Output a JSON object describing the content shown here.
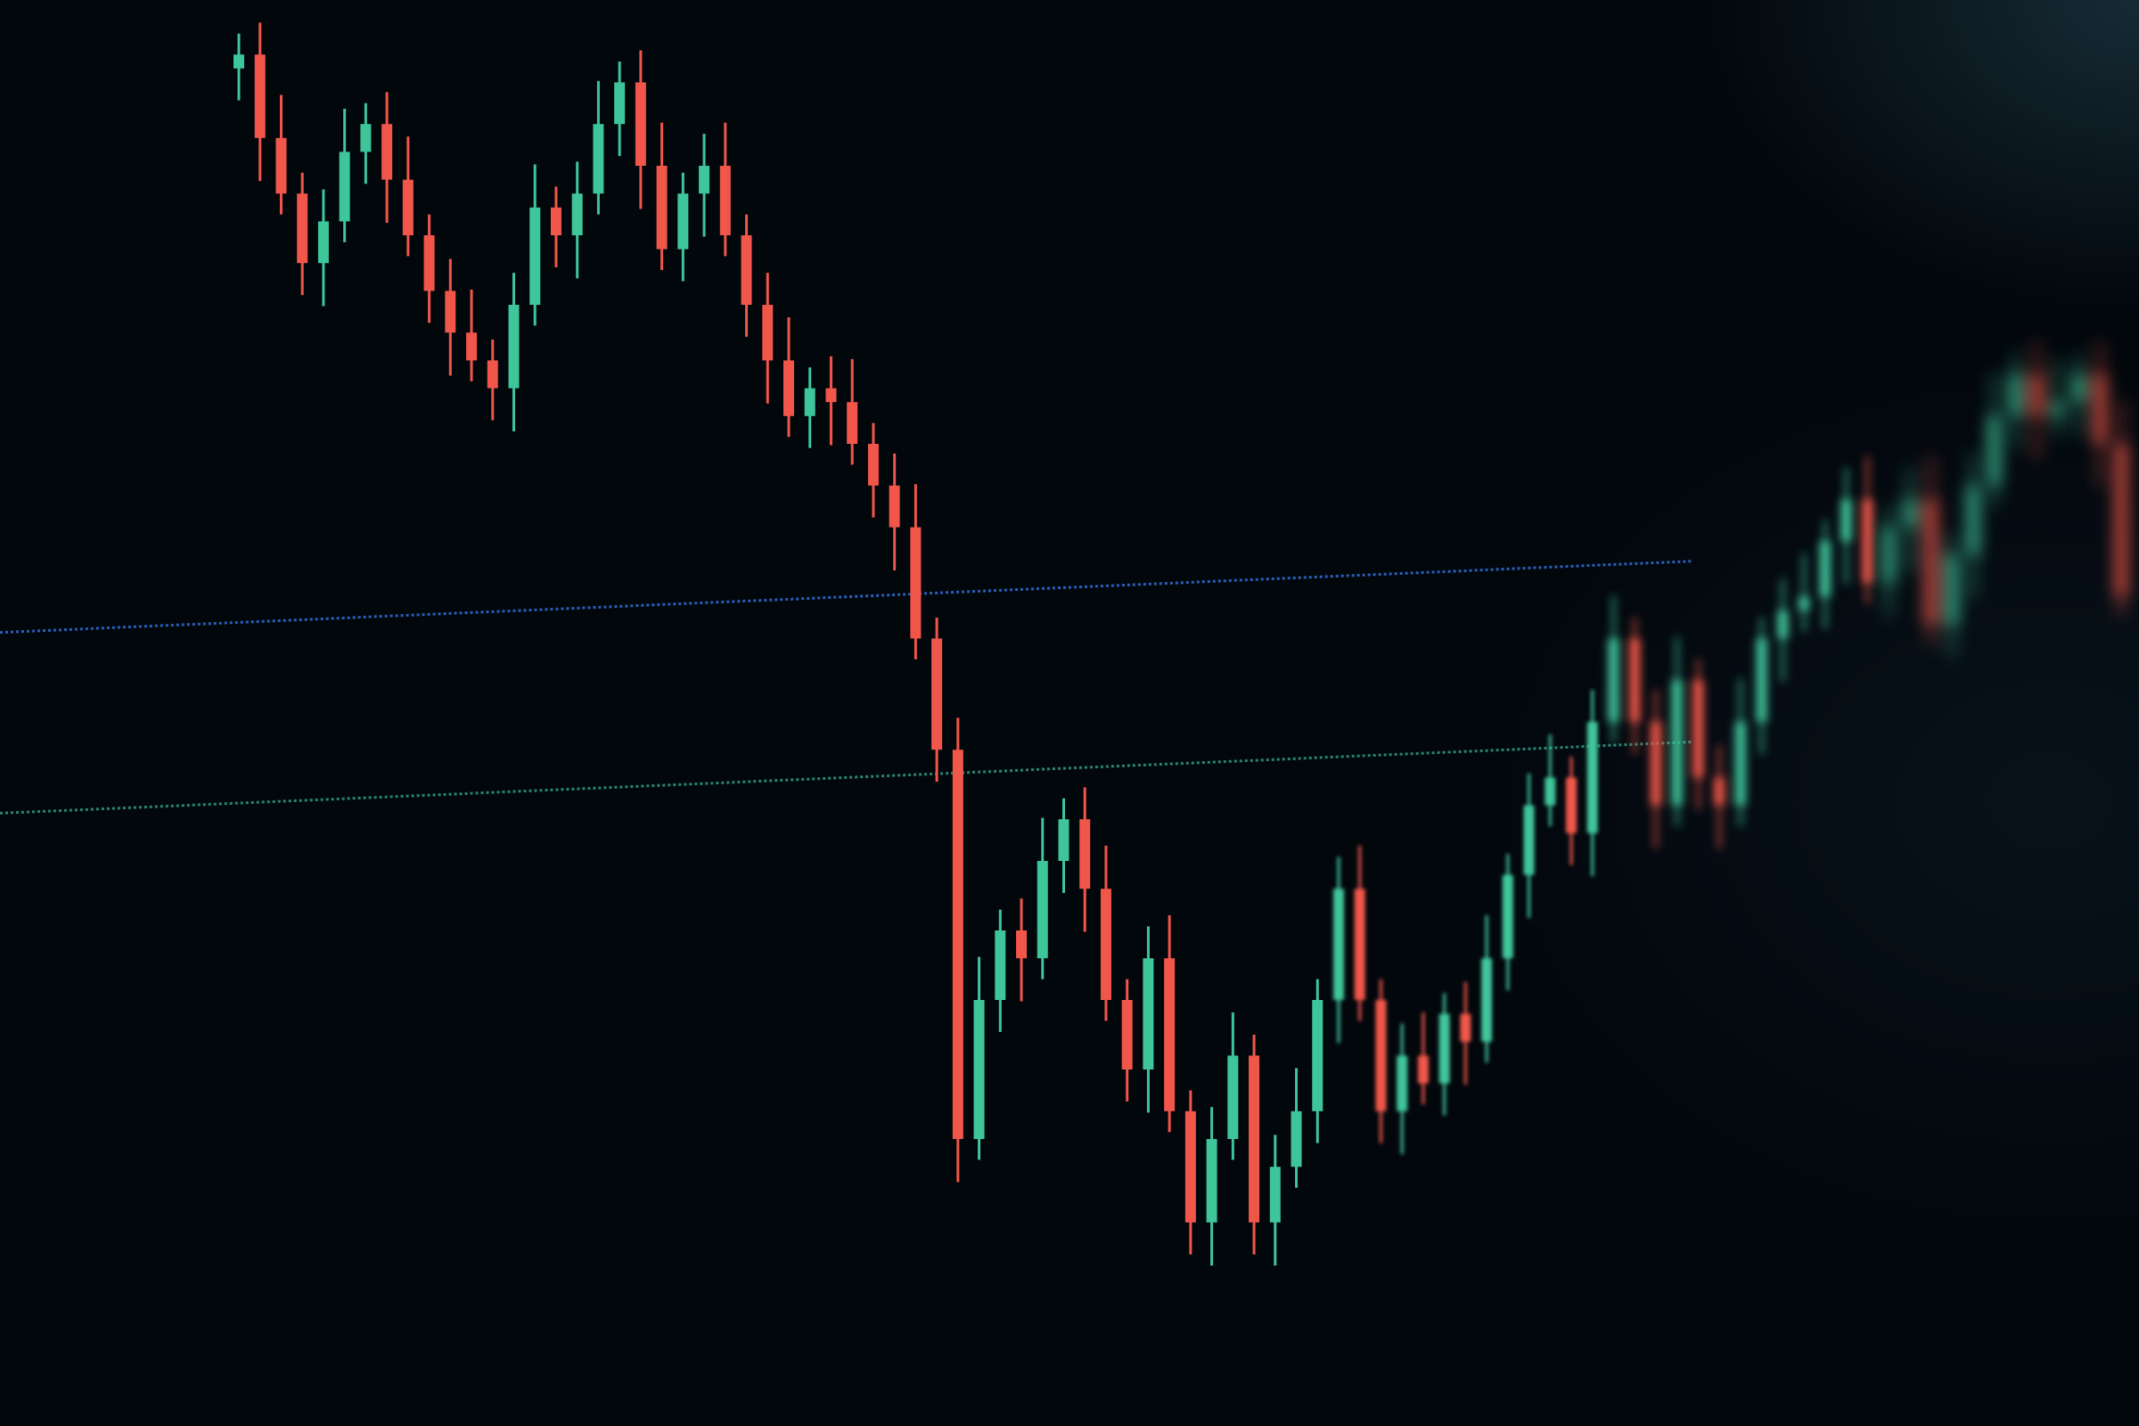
{
  "chart_data": {
    "type": "candlestick",
    "title": "",
    "xlabel": "",
    "ylabel": "",
    "grid": false,
    "legend": "none",
    "ylim": [
      0,
      100
    ],
    "close": [
      98,
      92,
      88,
      83,
      86,
      91,
      93,
      89,
      85,
      81,
      78,
      76,
      74,
      80,
      87,
      85,
      88,
      93,
      96,
      90,
      84,
      88,
      90,
      85,
      80,
      76,
      72,
      74,
      73,
      70,
      67,
      64,
      56,
      48,
      20,
      30,
      35,
      33,
      40,
      43,
      38,
      30,
      25,
      33,
      22,
      14,
      20,
      26,
      14,
      18,
      22,
      30,
      38,
      30,
      22,
      26,
      24,
      29,
      27,
      33,
      39,
      44,
      46,
      42,
      50,
      56,
      50,
      44,
      53,
      46,
      44,
      50,
      56,
      58,
      59,
      63,
      66,
      60,
      64,
      66,
      57,
      62,
      67,
      72,
      75,
      72,
      73,
      75,
      70,
      59
    ],
    "first_open": 97,
    "reference_lines": [
      {
        "level": 59,
        "style": "dotted",
        "color": "#2f6fd6"
      },
      {
        "level": 46,
        "style": "dotted",
        "color": "#2f9a86"
      }
    ],
    "colors": {
      "up": "#3fc59a",
      "down": "#f0564a",
      "background": "#02070c"
    }
  }
}
